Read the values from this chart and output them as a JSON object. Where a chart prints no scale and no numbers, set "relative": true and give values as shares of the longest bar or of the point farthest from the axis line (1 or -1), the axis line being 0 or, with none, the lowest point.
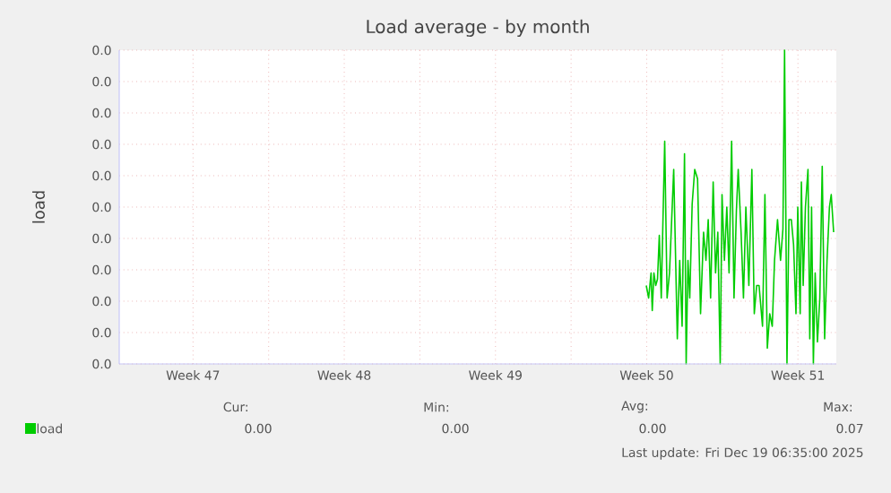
{
  "chart_data": {
    "type": "line",
    "title": "Load average - by month",
    "ylabel": "load",
    "relative": true,
    "xlim": [
      "2025-11-16T02:00",
      "2025-12-19T06:40"
    ],
    "xticks": [
      {
        "value": "2025-11-19T12:00",
        "label": "Week 47"
      },
      {
        "value": "2025-11-23",
        "label": null
      },
      {
        "value": "2025-11-26T12:00",
        "label": "Week 48"
      },
      {
        "value": "2025-11-30",
        "label": null
      },
      {
        "value": "2025-12-03T12:00",
        "label": "Week 49"
      },
      {
        "value": "2025-12-07",
        "label": null
      },
      {
        "value": "2025-12-10T12:00",
        "label": "Week 50"
      },
      {
        "value": "2025-12-14",
        "label": null
      },
      {
        "value": "2025-12-17T12:00",
        "label": "Week 51"
      }
    ],
    "grid": true,
    "legend": "bottom left",
    "series": [
      {
        "name": "load",
        "color": "#00cc00",
        "x": [
          "2025-12-10T11:30",
          "2025-12-10T14:10",
          "2025-12-10T16:50",
          "2025-12-10T18:10",
          "2025-12-10T20:00",
          "2025-12-10T22:00",
          "2025-12-11T00:00",
          "2025-12-11T02:00",
          "2025-12-11T04:10",
          "2025-12-11T08:00",
          "2025-12-11T10:40",
          "2025-12-11T13:20",
          "2025-12-11T18:00",
          "2025-12-11T22:00",
          "2025-12-12T00:40",
          "2025-12-12T03:20",
          "2025-12-12T06:00",
          "2025-12-12T07:50",
          "2025-12-12T09:50",
          "2025-12-12T11:50",
          "2025-12-12T14:30",
          "2025-12-12T17:20",
          "2025-12-12T20:30",
          "2025-12-12T23:50",
          "2025-12-13T03:10",
          "2025-12-13T05:50",
          "2025-12-13T08:20",
          "2025-12-13T11:00",
          "2025-12-13T13:50",
          "2025-12-13T16:30",
          "2025-12-13T19:00",
          "2025-12-13T21:40",
          "2025-12-13T23:40",
          "2025-12-14T02:20",
          "2025-12-14T05:00",
          "2025-12-14T07:30",
          "2025-12-14T10:20",
          "2025-12-14T13:00",
          "2025-12-14T15:40",
          "2025-12-14T17:40",
          "2025-12-14T20:50",
          "2025-12-14T23:30",
          "2025-12-15T02:10",
          "2025-12-15T05:30",
          "2025-12-15T08:50",
          "2025-12-15T11:30",
          "2025-12-15T14:10",
          "2025-12-15T16:50",
          "2025-12-15T20:40",
          "2025-12-15T23:20",
          "2025-12-16T02:00",
          "2025-12-16T04:40",
          "2025-12-16T07:30",
          "2025-12-16T10:00",
          "2025-12-16T13:20",
          "2025-12-16T16:40",
          "2025-12-16T19:20",
          "2025-12-16T21:10",
          "2025-12-16T23:50",
          "2025-12-17T02:00",
          "2025-12-17T04:40",
          "2025-12-17T07:10",
          "2025-12-17T09:50",
          "2025-12-17T11:50",
          "2025-12-17T14:30",
          "2025-12-17T15:50",
          "2025-12-17T17:50",
          "2025-12-17T20:20",
          "2025-12-17T23:10",
          "2025-12-18T01:10",
          "2025-12-18T03:10",
          "2025-12-18T05:10",
          "2025-12-18T07:10",
          "2025-12-18T09:40",
          "2025-12-18T12:20",
          "2025-12-18T15:00",
          "2025-12-18T17:40",
          "2025-12-18T20:20",
          "2025-12-18T23:00",
          "2025-12-19T01:00",
          "2025-12-19T03:40"
        ],
        "values": [
          0.25,
          0.21,
          0.29,
          0.17,
          0.29,
          0.25,
          0.27,
          0.41,
          0.21,
          0.71,
          0.21,
          0.29,
          0.62,
          0.08,
          0.33,
          0.12,
          0.67,
          0,
          0.33,
          0.21,
          0.51,
          0.62,
          0.59,
          0.16,
          0.42,
          0.33,
          0.46,
          0.21,
          0.58,
          0.29,
          0.42,
          0,
          0.54,
          0.33,
          0.5,
          0.29,
          0.71,
          0.21,
          0.49,
          0.62,
          0.42,
          0.21,
          0.5,
          0.25,
          0.62,
          0.16,
          0.25,
          0.25,
          0.12,
          0.54,
          0.05,
          0.16,
          0.12,
          0.33,
          0.46,
          0.33,
          0.43,
          1,
          0,
          0.46,
          0.46,
          0.38,
          0.16,
          0.5,
          0.16,
          0.58,
          0.25,
          0.5,
          0.62,
          0.08,
          0.5,
          0,
          0.29,
          0.07,
          0.21,
          0.63,
          0.08,
          0.33,
          0.5,
          0.54,
          0.42
        ]
      }
    ],
    "annotations": [
      "0.0",
      "0.0",
      "0.0",
      "0.0",
      "0.0",
      "0.0",
      "0.0",
      "0.0",
      "0.0",
      "0.0",
      "0.0",
      "Cur:",
      "Min:",
      "Avg:",
      "Max:",
      "0.00",
      "0.00",
      "0.00",
      "0.07",
      "Last update: Fri Dec 19 06:35:00 2025"
    ]
  }
}
